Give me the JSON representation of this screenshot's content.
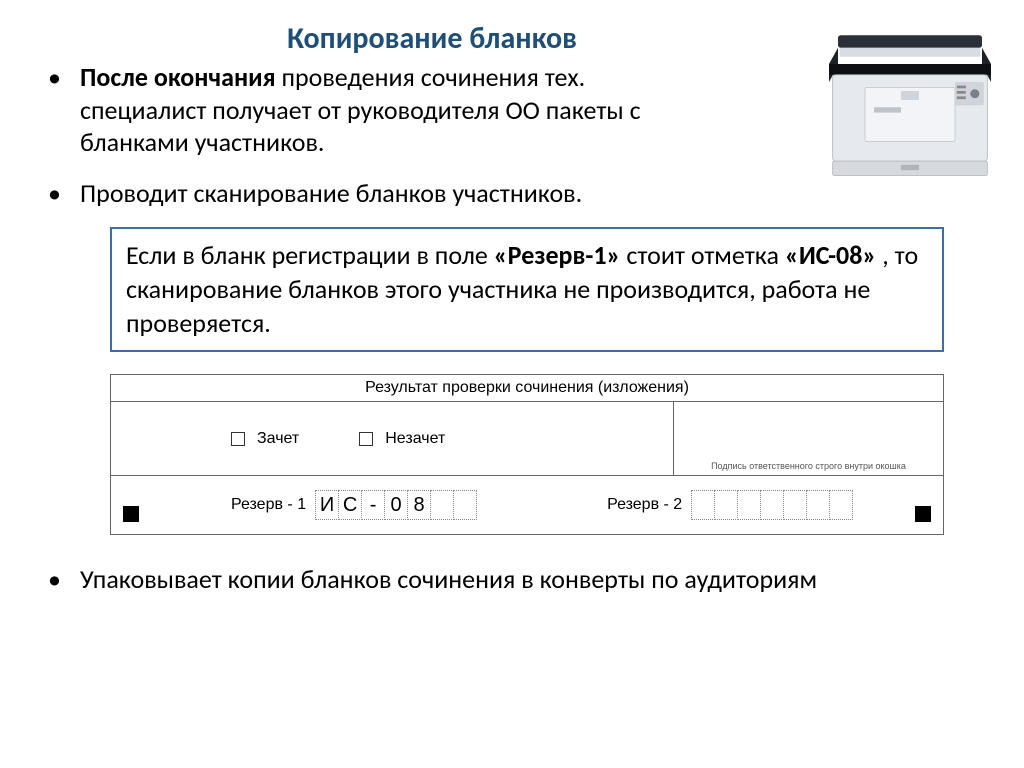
{
  "title": "Копирование бланков",
  "title_color": "#1f4e79",
  "bullet1_bold": "После окончания",
  "bullet1_rest": " проведения сочинения тех. специалист получает от руководителя ОО пакеты с бланками участников.",
  "bullet2": "Проводит сканирование  бланков участников.",
  "note_p1": "Если в бланк регистрации в поле ",
  "note_b1": "«Резерв-1»",
  "note_p2": " стоит отметка ",
  "note_b2": "«ИС-08»",
  "note_p3": " , то сканирование бланков этого участника не производится, работа не проверяется.",
  "form": {
    "header": "Результат проверки сочинения (изложения)",
    "opt1": "Зачет",
    "opt2": "Незачет",
    "sign_hint": "Подпись ответственного строго внутри окошка",
    "reserve1_label": "Резерв - 1",
    "reserve1_value": [
      "И",
      "С",
      "-",
      "0",
      "8",
      "",
      ""
    ],
    "reserve2_label": "Резерв - 2",
    "reserve2_cells": 7
  },
  "bullet3": "Упаковывает копии бланков сочинения в конверты по аудиториям",
  "colors": {
    "box_border": "#3b6ea5",
    "text": "#000000"
  }
}
